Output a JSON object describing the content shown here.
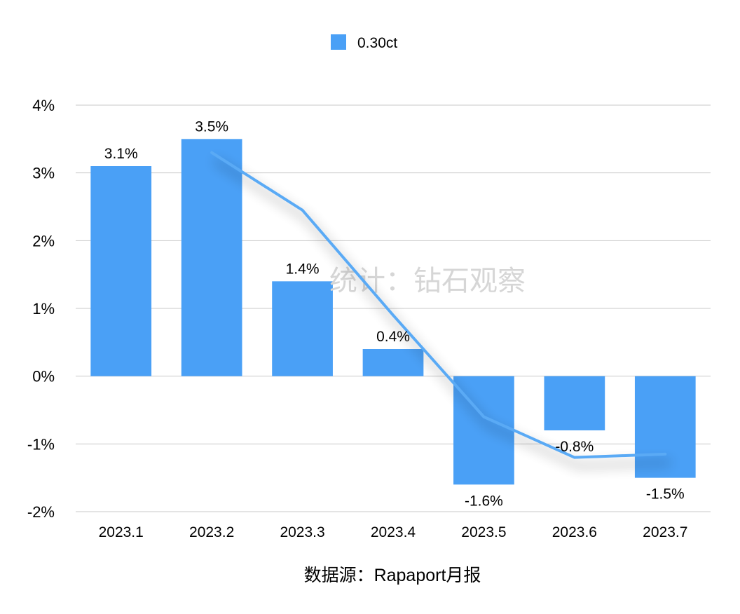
{
  "chart_data": {
    "type": "bar",
    "categories": [
      "2023.1",
      "2023.2",
      "2023.3",
      "2023.4",
      "2023.5",
      "2023.6",
      "2023.7"
    ],
    "series": [
      {
        "name": "0.30ct",
        "values": [
          3.1,
          3.5,
          1.4,
          0.4,
          -1.6,
          -0.8,
          -1.5
        ],
        "color": "#4aa0f6"
      }
    ],
    "data_labels": [
      "3.1%",
      "3.5%",
      "1.4%",
      "0.4%",
      "-1.6%",
      "-0.8%",
      "-1.5%"
    ],
    "trendline": {
      "type": "moving-average-2",
      "color": "#5aaaf5",
      "shadow": true
    },
    "ylim": [
      -2,
      4
    ],
    "yticks": [
      4,
      3,
      2,
      1,
      0,
      -1,
      -2
    ],
    "ytick_labels": [
      "4%",
      "3%",
      "2%",
      "1%",
      "0%",
      "-1%",
      "-2%"
    ],
    "grid": true,
    "legend": "top-center"
  },
  "watermark": "统计：钻石观察",
  "source": "数据源：Rapaport月报"
}
